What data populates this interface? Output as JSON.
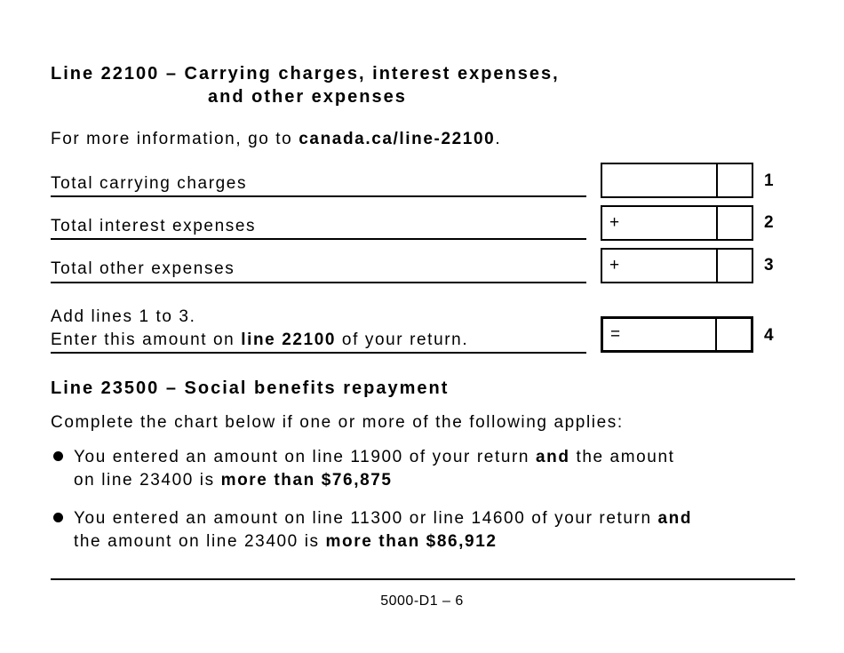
{
  "section1": {
    "title_line1": "Line 22100 – Carrying charges, interest expenses,",
    "title_line2": "and other expenses",
    "info_prefix": "For more information, go to ",
    "info_link": "canada.ca/line-22100",
    "info_suffix": ".",
    "rows": [
      {
        "label": "Total carrying charges",
        "symbol": "",
        "number": "1"
      },
      {
        "label": "Total interest expenses",
        "symbol": "+",
        "number": "2"
      },
      {
        "label": "Total other expenses",
        "symbol": "+",
        "number": "3"
      }
    ],
    "total": {
      "line1": "Add lines 1 to 3.",
      "line2_prefix": "Enter this amount on ",
      "line2_bold": "line 22100",
      "line2_suffix": " of your return.",
      "symbol": "=",
      "number": "4"
    }
  },
  "section2": {
    "title": "Line 23500 – Social benefits repayment",
    "intro": "Complete the chart below if one or more of the following applies:",
    "bullets": [
      {
        "a": "You entered an amount on line 11900 of your return ",
        "b": "and",
        "c": " the amount",
        "d": "on line 23400 is ",
        "e": "more than $76,875"
      },
      {
        "a": "You entered an amount on line 11300 or line 14600 of your return ",
        "b": "and",
        "c": "",
        "d": "the amount on line 23400 is ",
        "e": "more than $86,912"
      }
    ]
  },
  "footer": {
    "page_id": "5000-D1 – 6"
  }
}
